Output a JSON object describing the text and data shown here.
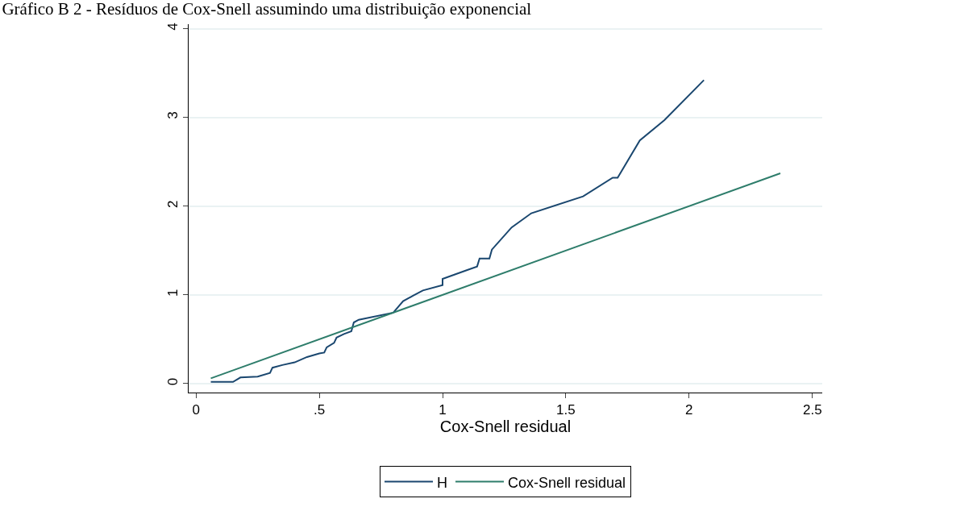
{
  "chart_data": {
    "type": "line",
    "title": "Gráfico B 2 - Resíduos de Cox-Snell assumindo uma distribuição exponencial",
    "xlabel": "Cox-Snell residual",
    "series": [
      {
        "name": "H",
        "color": "#1a476f",
        "x": [
          0.06,
          0.15,
          0.18,
          0.25,
          0.3,
          0.31,
          0.35,
          0.4,
          0.45,
          0.5,
          0.52,
          0.53,
          0.56,
          0.57,
          0.6,
          0.63,
          0.64,
          0.66,
          0.8,
          0.84,
          0.88,
          0.92,
          1.0,
          1.0,
          1.05,
          1.1,
          1.14,
          1.15,
          1.19,
          1.2,
          1.28,
          1.36,
          1.57,
          1.69,
          1.71,
          1.8,
          1.9,
          2.06
        ],
        "values": [
          0.02,
          0.02,
          0.07,
          0.08,
          0.12,
          0.18,
          0.21,
          0.24,
          0.3,
          0.34,
          0.35,
          0.41,
          0.46,
          0.52,
          0.56,
          0.59,
          0.69,
          0.72,
          0.8,
          0.93,
          0.99,
          1.05,
          1.11,
          1.18,
          1.23,
          1.28,
          1.32,
          1.41,
          1.41,
          1.51,
          1.76,
          1.92,
          2.11,
          2.32,
          2.32,
          2.74,
          2.97,
          3.42
        ]
      },
      {
        "name": "Cox-Snell residual",
        "color": "#2e7d6b",
        "x": [
          0.06,
          2.37
        ],
        "values": [
          0.06,
          2.37
        ]
      }
    ],
    "xlim": [
      -0.03,
      2.54
    ],
    "xticks": [
      0,
      {
        "value": 0.5,
        "label": ".5"
      },
      1,
      1.5,
      2,
      2.5
    ],
    "ylim": [
      -0.1,
      4.05
    ],
    "yticks": [
      0,
      1,
      2,
      3,
      4
    ],
    "grid": "y",
    "legend": "bottom",
    "marker": "none",
    "line_style": "solid"
  }
}
